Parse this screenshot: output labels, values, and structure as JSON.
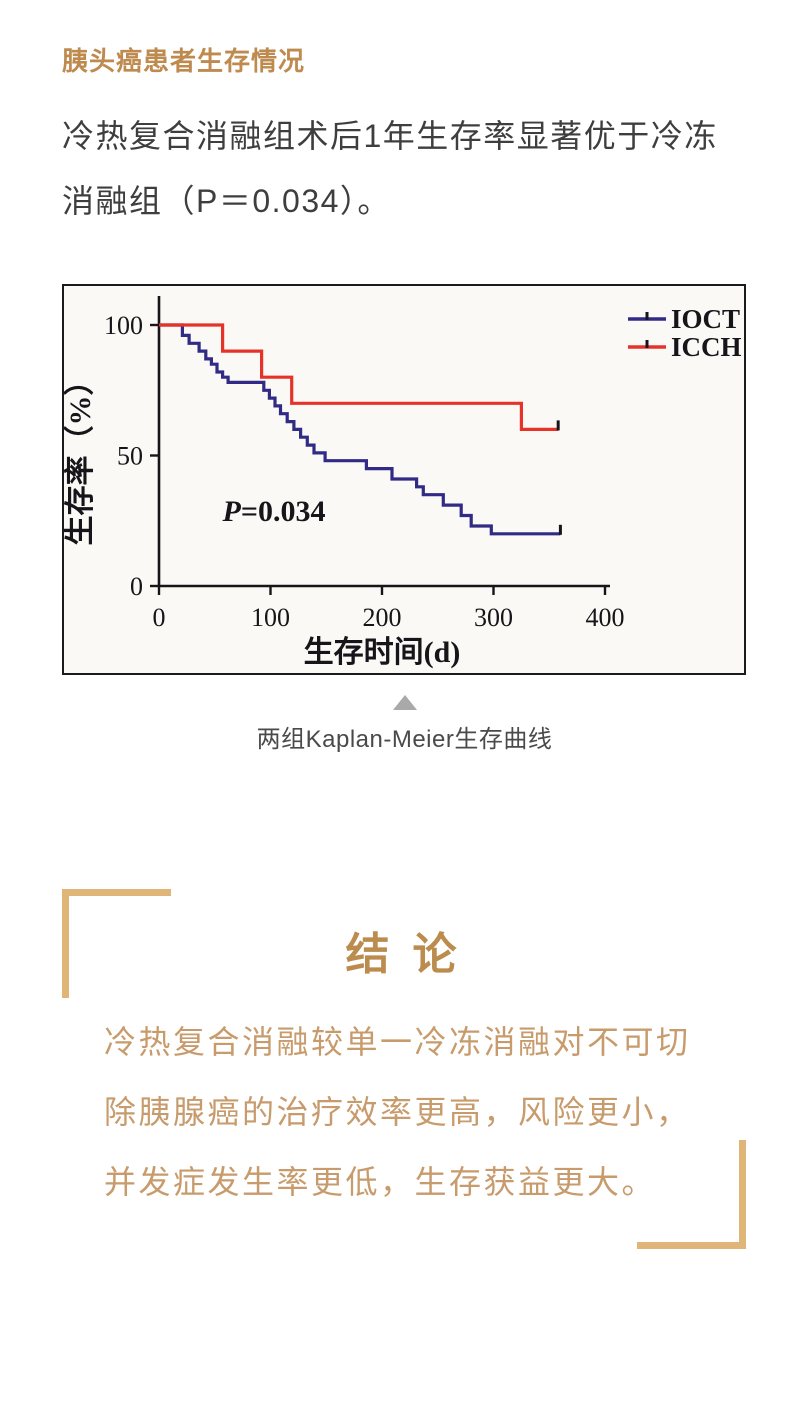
{
  "header": {
    "title": "胰头癌患者生存情况",
    "title_color": "#be8a4e"
  },
  "intro": {
    "text": "冷热复合消融组术后1年生存率显著优于冷冻消融组（P＝0.034）。"
  },
  "figure": {
    "caption": "两组Kaplan-Meier生存曲线",
    "border_color": "#1b1b1b",
    "background": "#fbf9f6"
  },
  "chart_data": {
    "type": "line",
    "subtype": "kaplan-meier-step",
    "xlabel": "生存时间(d)",
    "ylabel": "生存率（%）",
    "xlim": [
      0,
      400
    ],
    "ylim": [
      0,
      100
    ],
    "xticks": [
      0,
      100,
      200,
      300,
      400
    ],
    "yticks": [
      0,
      50,
      100
    ],
    "grid": false,
    "legend_position": "top-right",
    "axis_color": "#17141a",
    "annotation": {
      "text": "P=0.034",
      "x": 57,
      "y": 25
    },
    "series": [
      {
        "name": "IOCT",
        "color": "#322b85",
        "points": [
          [
            0,
            100
          ],
          [
            21,
            100
          ],
          [
            21,
            96
          ],
          [
            27,
            96
          ],
          [
            27,
            93
          ],
          [
            36,
            93
          ],
          [
            36,
            90
          ],
          [
            42,
            90
          ],
          [
            42,
            87
          ],
          [
            47,
            87
          ],
          [
            47,
            85
          ],
          [
            52,
            85
          ],
          [
            52,
            82
          ],
          [
            57,
            82
          ],
          [
            57,
            80
          ],
          [
            62,
            80
          ],
          [
            62,
            78
          ],
          [
            94,
            78
          ],
          [
            94,
            75
          ],
          [
            99,
            75
          ],
          [
            99,
            72
          ],
          [
            104,
            72
          ],
          [
            104,
            69
          ],
          [
            109,
            69
          ],
          [
            109,
            66
          ],
          [
            115,
            66
          ],
          [
            115,
            63
          ],
          [
            121,
            63
          ],
          [
            121,
            60
          ],
          [
            127,
            60
          ],
          [
            127,
            57
          ],
          [
            133,
            57
          ],
          [
            133,
            54
          ],
          [
            139,
            54
          ],
          [
            139,
            51
          ],
          [
            149,
            51
          ],
          [
            149,
            48
          ],
          [
            186,
            48
          ],
          [
            186,
            45
          ],
          [
            209,
            45
          ],
          [
            209,
            41
          ],
          [
            231,
            41
          ],
          [
            231,
            38
          ],
          [
            237,
            38
          ],
          [
            237,
            35
          ],
          [
            255,
            35
          ],
          [
            255,
            31
          ],
          [
            271,
            31
          ],
          [
            271,
            27
          ],
          [
            280,
            27
          ],
          [
            280,
            23
          ],
          [
            298,
            23
          ],
          [
            298,
            20
          ],
          [
            360,
            20
          ]
        ],
        "censor_at": [
          360,
          20
        ]
      },
      {
        "name": "ICCH",
        "color": "#e6332a",
        "points": [
          [
            0,
            100
          ],
          [
            57,
            100
          ],
          [
            57,
            90
          ],
          [
            92,
            90
          ],
          [
            92,
            80
          ],
          [
            119,
            80
          ],
          [
            119,
            70
          ],
          [
            325,
            70
          ],
          [
            325,
            60
          ],
          [
            358,
            60
          ]
        ],
        "censor_at": [
          358,
          60
        ]
      }
    ]
  },
  "conclusion": {
    "heading": "结 论",
    "text": "冷热复合消融较单一冷冻消融对不可切除胰腺癌的治疗效率更高，风险更小，并发症发生率更低，生存获益更大。",
    "heading_color": "#bb8c4d",
    "text_color": "#c89b6c",
    "bracket_color": "#dfb678"
  }
}
